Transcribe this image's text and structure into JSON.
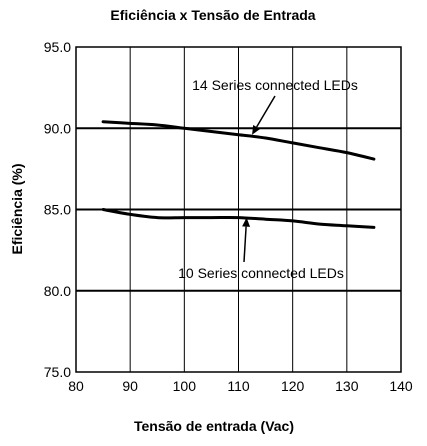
{
  "chart_data": {
    "type": "line",
    "title": "Eficiência x Tensão de Entrada",
    "xlabel": "Tensão de entrada (Vac)",
    "ylabel": "Eficiência (%)",
    "xlim": [
      80,
      140
    ],
    "ylim": [
      75,
      95
    ],
    "x_ticks": [
      "80",
      "90",
      "100",
      "110",
      "120",
      "130",
      "140"
    ],
    "y_ticks": [
      "75.0",
      "80.0",
      "85.0",
      "90.0",
      "95.0"
    ],
    "grid": true,
    "series": [
      {
        "name": "14 Series connected LEDs",
        "x": [
          85,
          90,
          95,
          100,
          105,
          110,
          115,
          120,
          125,
          130,
          135
        ],
        "y": [
          90.4,
          90.3,
          90.2,
          90.0,
          89.8,
          89.6,
          89.4,
          89.1,
          88.8,
          88.5,
          88.1
        ]
      },
      {
        "name": "10 Series connected LEDs",
        "x": [
          85,
          90,
          95,
          100,
          105,
          110,
          115,
          120,
          125,
          130,
          135
        ],
        "y": [
          85.0,
          84.7,
          84.5,
          84.5,
          84.5,
          84.5,
          84.4,
          84.3,
          84.1,
          84.0,
          83.9
        ]
      }
    ],
    "annotations": [
      {
        "text": "14 Series connected LEDs",
        "series": 0,
        "x": 112.5,
        "y": 89.6
      },
      {
        "text": "10 Series connected LEDs",
        "series": 1,
        "x": 111.5,
        "y": 84.5
      }
    ]
  }
}
